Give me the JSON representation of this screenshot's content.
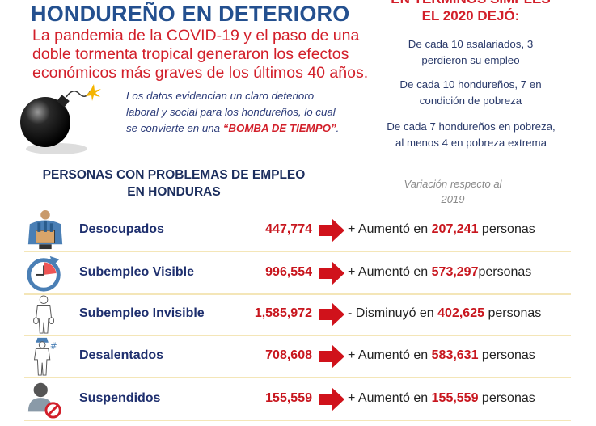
{
  "header": {
    "title": "HONDUREÑO EN DETERIORO",
    "lead_lines": [
      "La pandemia de la COVID-19 y el paso de una",
      "doble tormenta tropical generaron los efectos",
      "económicos más graves de los últimos 40 años."
    ],
    "note_lines": [
      "Los datos evidencian un claro deterioro",
      "laboral y social para los hondureños, lo cual",
      "se convierte en una "
    ],
    "note_highlight": "“BOMBA DE TIEMPO”",
    "note_end": "."
  },
  "sidebar": {
    "heading_cut": "EN TÉRMINOS SIMPLES",
    "heading": "EL 2020 DEJÓ:",
    "facts": [
      "De cada 10 asalariados, 3 perdieron su empleo",
      "De cada 10 hondureños, 7 en condición de pobreza",
      "De cada 7 hondureños en pobreza, al menos 4 en pobreza extrema"
    ]
  },
  "section": {
    "title_line1": "PERSONAS CON PROBLEMAS DE EMPLEO",
    "title_line2": "EN HONDURAS",
    "variation_line1": "Variación respecto al",
    "variation_line2": "2019"
  },
  "rows": [
    {
      "icon": "unemployed-worker-box-icon",
      "label": "Desocupados",
      "value": "447,774",
      "change_prefix": "+ Aumentó en ",
      "change_value": "207,241",
      "change_suffix": " personas"
    },
    {
      "icon": "clock-arrow-icon",
      "label": "Subempleo Visible",
      "value": "996,554",
      "change_prefix": "+ Aumentó en ",
      "change_value": "573,297",
      "change_suffix": "personas"
    },
    {
      "icon": "person-empty-pockets-icon",
      "label": "Subempleo Invisible",
      "value": "1,585,972",
      "change_prefix": "- Disminuyó en ",
      "change_value": "402,625",
      "change_suffix": " personas"
    },
    {
      "icon": "discouraged-worker-icon",
      "label": "Desalentados",
      "value": "708,608",
      "change_prefix": "+ Aumentó en ",
      "change_value": "583,631",
      "change_suffix": " personas"
    },
    {
      "icon": "person-prohibited-icon",
      "label": "Suspendidos",
      "value": "155,559",
      "change_prefix": "+ Aumentó en ",
      "change_value": "155,559",
      "change_suffix": " personas"
    }
  ],
  "colors": {
    "title_blue": "#24508f",
    "accent_red": "#d21f2a",
    "navy": "#1e2f6e",
    "separator": "#f4e6b8"
  }
}
